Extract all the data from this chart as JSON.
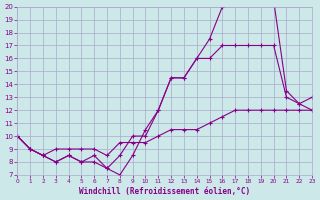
{
  "line_a_x": [
    0,
    1,
    2,
    3,
    4,
    5,
    6,
    7,
    8,
    9,
    10,
    11,
    12,
    13,
    14,
    15,
    16,
    17,
    18,
    19,
    20,
    21,
    22,
    23
  ],
  "line_a_y": [
    10,
    9,
    8.5,
    9,
    9,
    9,
    9,
    8.5,
    9.5,
    9.5,
    9.5,
    10,
    10.5,
    10.5,
    10.5,
    11,
    11.5,
    12,
    12,
    12,
    12,
    12,
    12,
    12
  ],
  "line_b_x": [
    0,
    1,
    2,
    3,
    4,
    5,
    6,
    7,
    8,
    9,
    10,
    11,
    12,
    13,
    14,
    15,
    16,
    17,
    18,
    19,
    20,
    21,
    22,
    23
  ],
  "line_b_y": [
    10,
    9,
    8.5,
    8,
    8.5,
    8,
    8.5,
    7.5,
    8.5,
    10,
    10,
    12,
    14.5,
    14.5,
    16,
    16,
    17,
    17,
    17,
    17,
    17,
    13,
    12.5,
    13
  ],
  "line_c_x": [
    0,
    1,
    2,
    3,
    4,
    5,
    6,
    7,
    8,
    9,
    10,
    11,
    12,
    13,
    14,
    15,
    16,
    17,
    18,
    19,
    20,
    21,
    22,
    23
  ],
  "line_c_y": [
    10,
    9,
    8.5,
    8,
    8.5,
    8,
    8,
    7.5,
    7,
    8.5,
    10.5,
    12,
    14.5,
    14.5,
    16,
    17.5,
    20,
    20.5,
    20.5,
    20.5,
    20.5,
    13.5,
    12.5,
    12
  ],
  "bg_color": "#cce8e8",
  "line_color": "#880088",
  "grid_color": "#aaaacc",
  "xlabel": "Windchill (Refroidissement éolien,°C)",
  "xlabel_color": "#880088",
  "tick_color": "#880088",
  "xlim": [
    0,
    23
  ],
  "ylim": [
    7,
    20
  ],
  "yticks": [
    7,
    8,
    9,
    10,
    11,
    12,
    13,
    14,
    15,
    16,
    17,
    18,
    19,
    20
  ],
  "xticks": [
    0,
    1,
    2,
    3,
    4,
    5,
    6,
    7,
    8,
    9,
    10,
    11,
    12,
    13,
    14,
    15,
    16,
    17,
    18,
    19,
    20,
    21,
    22,
    23
  ]
}
